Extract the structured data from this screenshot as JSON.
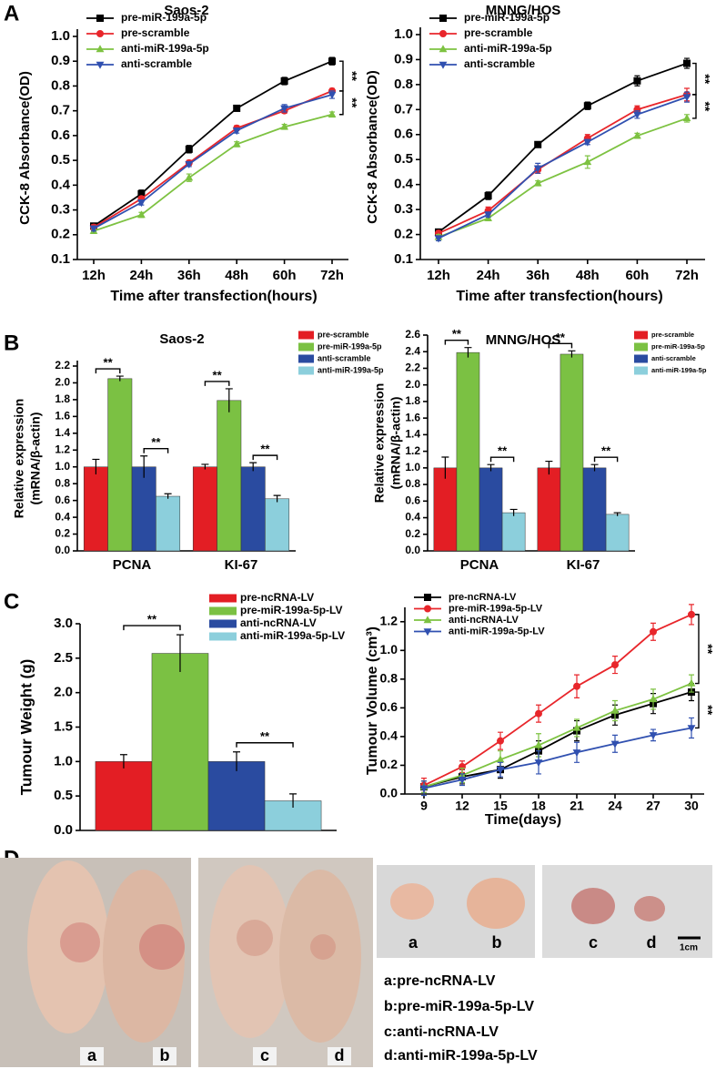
{
  "panel_labels": [
    "A",
    "B",
    "C",
    "D"
  ],
  "chart_data": [
    {
      "type": "line",
      "title": "Saos-2",
      "categories": [
        "12h",
        "24h",
        "36h",
        "48h",
        "60h",
        "72h"
      ],
      "series": [
        {
          "name": "pre-miR-199a-5p",
          "color": "#000000",
          "marker": "square",
          "values": [
            0.235,
            0.365,
            0.545,
            0.71,
            0.82,
            0.9
          ],
          "errors": [
            0.01,
            0.015,
            0.015,
            0.01,
            0.015,
            0.015
          ]
        },
        {
          "name": "pre-scramble",
          "color": "#e8262b",
          "marker": "circle",
          "values": [
            0.23,
            0.345,
            0.49,
            0.63,
            0.7,
            0.78
          ],
          "errors": [
            0.01,
            0.01,
            0.01,
            0.01,
            0.01,
            0.01
          ]
        },
        {
          "name": "anti-miR-199a-5p",
          "color": "#7dc241",
          "marker": "triangle-up",
          "values": [
            0.215,
            0.28,
            0.43,
            0.565,
            0.635,
            0.685
          ],
          "errors": [
            0.01,
            0.01,
            0.015,
            0.01,
            0.01,
            0.01
          ]
        },
        {
          "name": "anti-scramble",
          "color": "#3050b0",
          "marker": "triangle-down",
          "values": [
            0.225,
            0.33,
            0.485,
            0.62,
            0.71,
            0.765
          ],
          "errors": [
            0.01,
            0.01,
            0.01,
            0.01,
            0.015,
            0.015
          ]
        }
      ],
      "ylim": [
        0.1,
        1.0
      ],
      "yticks": [
        0.1,
        0.2,
        0.3,
        0.4,
        0.5,
        0.6,
        0.7,
        0.8,
        0.9,
        {
          "value": 1.0,
          "label": "1.0"
        }
      ],
      "xlabel": "Time after transfection(hours)",
      "ylabel": "CCK-8 Absorbance(OD)",
      "legend": "upper left",
      "annotations": [
        "**",
        "**"
      ]
    },
    {
      "type": "line",
      "title": "MNNG/HOS",
      "categories": [
        "12h",
        "24h",
        "36h",
        "48h",
        "60h",
        "72h"
      ],
      "series": [
        {
          "name": "pre-miR-199a-5p",
          "color": "#000000",
          "marker": "square",
          "values": [
            0.21,
            0.355,
            0.56,
            0.715,
            0.815,
            0.885
          ],
          "errors": [
            0.01,
            0.015,
            0.01,
            0.015,
            0.02,
            0.02
          ]
        },
        {
          "name": "pre-scramble",
          "color": "#e8262b",
          "marker": "circle",
          "values": [
            0.205,
            0.295,
            0.46,
            0.585,
            0.7,
            0.76
          ],
          "errors": [
            0.01,
            0.015,
            0.015,
            0.015,
            0.015,
            0.025
          ]
        },
        {
          "name": "anti-miR-199a-5p",
          "color": "#7dc241",
          "marker": "triangle-up",
          "values": [
            0.19,
            0.265,
            0.405,
            0.49,
            0.595,
            0.665
          ],
          "errors": [
            0.01,
            0.01,
            0.01,
            0.025,
            0.01,
            0.015
          ]
        },
        {
          "name": "anti-scramble",
          "color": "#3050b0",
          "marker": "triangle-down",
          "values": [
            0.185,
            0.28,
            0.465,
            0.57,
            0.68,
            0.75
          ],
          "errors": [
            0.01,
            0.01,
            0.02,
            0.01,
            0.015,
            0.02
          ]
        }
      ],
      "ylim": [
        0.1,
        1.0
      ],
      "yticks": [
        0.1,
        0.2,
        0.3,
        0.4,
        0.5,
        0.6,
        0.7,
        0.8,
        0.9,
        {
          "value": 1.0,
          "label": "1.0"
        }
      ],
      "xlabel": "Time after transfection(hours)",
      "ylabel": "CCK-8 Absorbance(OD)",
      "legend": "upper left",
      "annotations": [
        "**",
        "**"
      ]
    },
    {
      "type": "bar",
      "title": "Saos-2",
      "categories": [
        "PCNA",
        "KI-67"
      ],
      "series": [
        {
          "name": "pre-scramble",
          "color": "#e31e24",
          "values": [
            1.0,
            1.0
          ],
          "errors": [
            0.09,
            0.03
          ]
        },
        {
          "name": "pre-miR-199a-5p",
          "color": "#7bc143",
          "values": [
            2.05,
            1.79
          ],
          "errors": [
            0.03,
            0.14
          ]
        },
        {
          "name": "anti-scramble",
          "color": "#2a4ba0",
          "values": [
            1.0,
            1.0
          ],
          "errors": [
            0.13,
            0.05
          ]
        },
        {
          "name": "anti-miR-199a-5p",
          "color": "#8ccfdc",
          "values": [
            0.65,
            0.62
          ],
          "errors": [
            0.03,
            0.04
          ]
        }
      ],
      "ylim": [
        0,
        2.2
      ],
      "yticks": [
        {
          "value": 0,
          "label": "0.0"
        },
        0.2,
        0.4,
        0.6,
        0.8,
        {
          "value": 1.0,
          "label": "1.0"
        },
        1.2,
        1.4,
        1.6,
        1.8,
        {
          "value": 2.0,
          "label": "2.0"
        },
        2.2
      ],
      "ylabel": [
        "Relative expression",
        "(mRNA/β-actin)"
      ],
      "legend": "upper right",
      "annotations": [
        "**",
        "**",
        "**",
        "**"
      ]
    },
    {
      "type": "bar",
      "title": "MNNG/HOS",
      "categories": [
        "PCNA",
        "KI-67"
      ],
      "series": [
        {
          "name": "pre-scramble",
          "color": "#e31e24",
          "values": [
            1.0,
            1.0
          ],
          "errors": [
            0.13,
            0.08
          ]
        },
        {
          "name": "pre-miR-199a-5p",
          "color": "#7bc143",
          "values": [
            2.39,
            2.37
          ],
          "errors": [
            0.06,
            0.04
          ]
        },
        {
          "name": "anti-scramble",
          "color": "#2a4ba0",
          "values": [
            1.0,
            1.0
          ],
          "errors": [
            0.04,
            0.04
          ]
        },
        {
          "name": "anti-miR-199a-5p",
          "color": "#8ccfdc",
          "values": [
            0.46,
            0.44
          ],
          "errors": [
            0.04,
            0.02
          ]
        }
      ],
      "ylim": [
        0,
        2.6
      ],
      "yticks": [
        {
          "value": 0,
          "label": "0.0"
        },
        0.2,
        0.4,
        0.6,
        0.8,
        {
          "value": 1.0,
          "label": "1.0"
        },
        1.2,
        1.4,
        1.6,
        1.8,
        {
          "value": 2.0,
          "label": "2.0"
        },
        2.2,
        2.4,
        2.6
      ],
      "ylabel": [
        "Relative expression",
        "(mRNA/β-actin)"
      ],
      "legend": "upper right",
      "annotations": [
        "**",
        "**",
        "**",
        "**"
      ]
    },
    {
      "type": "bar",
      "categories": [
        null
      ],
      "series": [
        {
          "name": "pre-ncRNA-LV",
          "color": "#e31e24",
          "values": [
            1.0
          ],
          "errors": [
            0.1
          ]
        },
        {
          "name": "pre-miR-199a-5p-LV",
          "color": "#7bc143",
          "values": [
            2.57
          ],
          "errors": [
            0.27
          ]
        },
        {
          "name": "anti-ncRNA-LV",
          "color": "#2a4ba0",
          "values": [
            1.0
          ],
          "errors": [
            0.14
          ]
        },
        {
          "name": "anti-miR-199a-5p-LV",
          "color": "#8ccfdc",
          "values": [
            0.43
          ],
          "errors": [
            0.1
          ]
        }
      ],
      "ylim": [
        0,
        3.0
      ],
      "yticks": [
        {
          "value": 0,
          "label": "0.0"
        },
        0.5,
        {
          "value": 1.0,
          "label": "1.0"
        },
        1.5,
        {
          "value": 2.0,
          "label": "2.0"
        },
        2.5,
        {
          "value": 3.0,
          "label": "3.0"
        }
      ],
      "ylabel": "Tumour Weight (g)",
      "legend": "upper right",
      "annotations": [
        "**",
        "**"
      ]
    },
    {
      "type": "line",
      "x": [
        9,
        12,
        15,
        18,
        21,
        24,
        27,
        30
      ],
      "series": [
        {
          "name": "pre-ncRNA-LV",
          "color": "#000000",
          "marker": "square",
          "values": [
            0.05,
            0.12,
            0.17,
            0.3,
            0.44,
            0.55,
            0.63,
            0.71
          ],
          "errors": [
            0.04,
            0.05,
            0.06,
            0.07,
            0.07,
            0.07,
            0.07,
            0.06
          ]
        },
        {
          "name": "pre-miR-199a-5p-LV",
          "color": "#e8262b",
          "marker": "circle",
          "values": [
            0.06,
            0.19,
            0.37,
            0.56,
            0.75,
            0.9,
            1.13,
            1.25
          ],
          "errors": [
            0.05,
            0.04,
            0.06,
            0.06,
            0.08,
            0.06,
            0.06,
            0.07
          ]
        },
        {
          "name": "anti-ncRNA-LV",
          "color": "#7dc241",
          "marker": "triangle-up",
          "values": [
            0.05,
            0.13,
            0.24,
            0.34,
            0.46,
            0.58,
            0.66,
            0.77
          ],
          "errors": [
            0.04,
            0.05,
            0.06,
            0.08,
            0.06,
            0.07,
            0.07,
            0.06
          ]
        },
        {
          "name": "anti-miR-199a-5p-LV",
          "color": "#3050b0",
          "marker": "triangle-down",
          "values": [
            0.04,
            0.1,
            0.17,
            0.22,
            0.29,
            0.35,
            0.41,
            0.46
          ],
          "errors": [
            0.05,
            0.04,
            0.05,
            0.08,
            0.07,
            0.06,
            0.04,
            0.07
          ]
        }
      ],
      "xlim": [
        7.5,
        31
      ],
      "xticks": [
        9,
        12,
        15,
        18,
        21,
        24,
        27,
        30
      ],
      "ylim": [
        0,
        1.3
      ],
      "yticks": [
        {
          "value": 0,
          "label": "0.0"
        },
        0.2,
        0.4,
        0.6,
        0.8,
        {
          "value": 1.0,
          "label": "1.0"
        },
        1.2
      ],
      "xlabel": "Time(days)",
      "ylabel": "Tumour Volume (cm³)",
      "legend": "upper left",
      "annotations": [
        "**",
        "**"
      ]
    }
  ],
  "photo": {
    "labels": [
      "a",
      "b",
      "c",
      "d"
    ],
    "scale": "1cm",
    "key": [
      "a:pre-ncRNA-LV",
      "b:pre-miR-199a-5p-LV",
      "c:anti-ncRNA-LV",
      "d:anti-miR-199a-5p-LV"
    ]
  }
}
